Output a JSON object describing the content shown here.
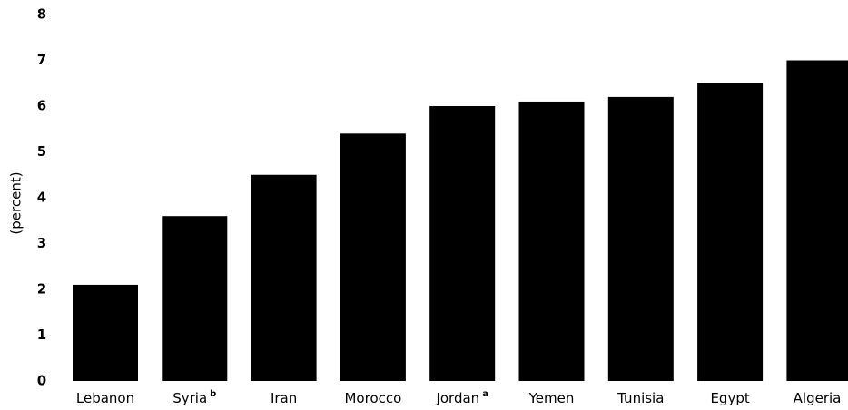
{
  "chart_data": {
    "type": "bar",
    "categories": [
      "Lebanon",
      "Syria",
      "Iran",
      "Morocco",
      "Jordan",
      "Yemen",
      "Tunisia",
      "Egypt",
      "Algeria"
    ],
    "category_superscripts": [
      "",
      "b",
      "",
      "",
      "a",
      "",
      "",
      "",
      ""
    ],
    "values": [
      2.1,
      3.6,
      4.5,
      5.4,
      6.0,
      6.1,
      6.2,
      6.5,
      7.0
    ],
    "ylabel": "(percent)",
    "xlabel": "",
    "ylim": [
      0,
      8
    ],
    "yticks": [
      "0",
      "1",
      "2",
      "3",
      "4",
      "5",
      "6",
      "7",
      "8"
    ],
    "grid": false,
    "bar_color": "#000000"
  }
}
